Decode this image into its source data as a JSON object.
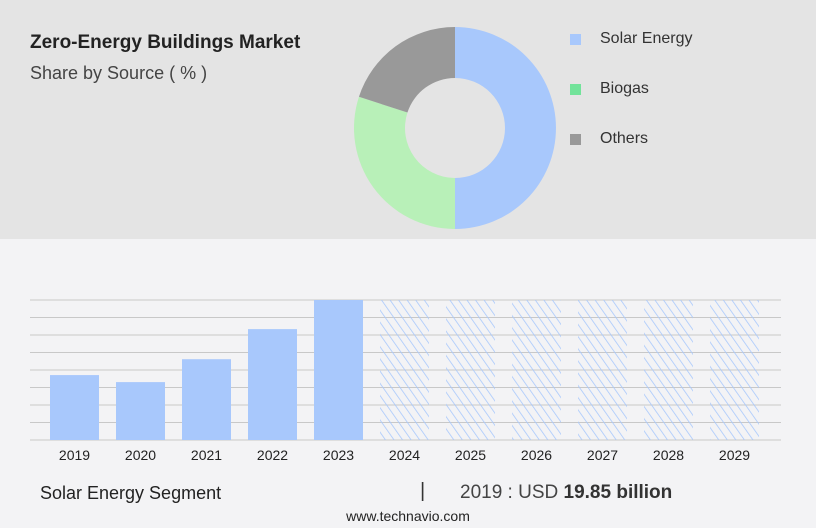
{
  "header": {
    "title": "Zero-Energy Buildings Market",
    "subtitle": "Share by Source ( % )"
  },
  "chart_data": [
    {
      "type": "pie",
      "variant": "donut",
      "categories": [
        "Solar Energy",
        "Biogas",
        "Others"
      ],
      "values": [
        50,
        30,
        20
      ],
      "colors": [
        "#a8c8fc",
        "#b8f0b8",
        "#999999"
      ],
      "legend_colors": [
        "#a8c8fc",
        "#72e39a",
        "#999999"
      ],
      "legend": "right"
    },
    {
      "type": "bar",
      "categories": [
        "2019",
        "2020",
        "2021",
        "2022",
        "2023",
        "2024",
        "2025",
        "2026",
        "2027",
        "2028",
        "2029"
      ],
      "values": [
        19.85,
        17.7,
        24.7,
        33.9,
        42.8,
        null,
        null,
        null,
        null,
        null,
        null
      ],
      "forecast": [
        false,
        false,
        false,
        false,
        false,
        true,
        true,
        true,
        true,
        true,
        true
      ],
      "ylim": [
        0,
        42.8
      ],
      "grid": true,
      "color": "#a8c8fc"
    }
  ],
  "footer": {
    "segment": "Solar Energy Segment",
    "separator": "|",
    "year_label": "2019 : USD",
    "value": "19.85 billion",
    "site": "www.technavio.com"
  }
}
